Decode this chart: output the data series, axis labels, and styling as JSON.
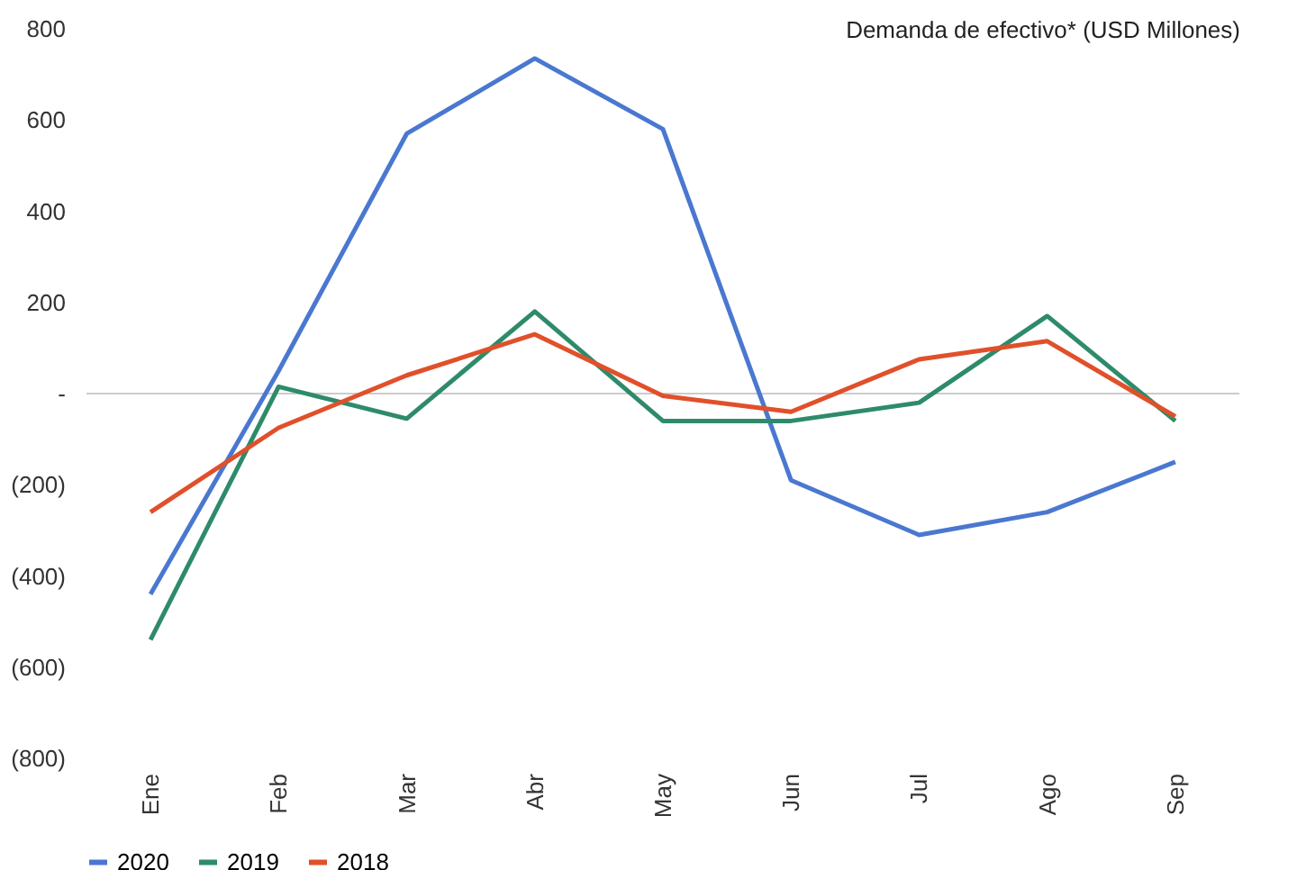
{
  "chart_data": {
    "type": "line",
    "title": "Demanda de efectivo* (USD Millones)",
    "categories": [
      "Ene",
      "Feb",
      "Mar",
      "Abr",
      "May",
      "Jun",
      "Jul",
      "Ago",
      "Sep"
    ],
    "series": [
      {
        "name": "2020",
        "color": "#4a78d0",
        "values": [
          -440,
          50,
          570,
          735,
          580,
          -190,
          -310,
          -260,
          -150
        ]
      },
      {
        "name": "2019",
        "color": "#2e8b6a",
        "values": [
          -540,
          15,
          -55,
          180,
          -60,
          -60,
          -20,
          170,
          -60
        ]
      },
      {
        "name": "2018",
        "color": "#e0502a",
        "values": [
          -260,
          -75,
          40,
          130,
          -5,
          -40,
          75,
          115,
          -50
        ]
      }
    ],
    "ylim": [
      -800,
      800
    ],
    "yticks": [
      800,
      600,
      400,
      200,
      {
        "value": 0,
        "label": "-"
      },
      {
        "value": -200,
        "label": "(200)"
      },
      {
        "value": -400,
        "label": "(400)"
      },
      {
        "value": -600,
        "label": "(600)"
      },
      {
        "value": -800,
        "label": "(800)"
      }
    ],
    "ref_lines": [
      {
        "axis": "y",
        "value": 0,
        "color": "#cccccc"
      }
    ],
    "legend": "bottom"
  }
}
